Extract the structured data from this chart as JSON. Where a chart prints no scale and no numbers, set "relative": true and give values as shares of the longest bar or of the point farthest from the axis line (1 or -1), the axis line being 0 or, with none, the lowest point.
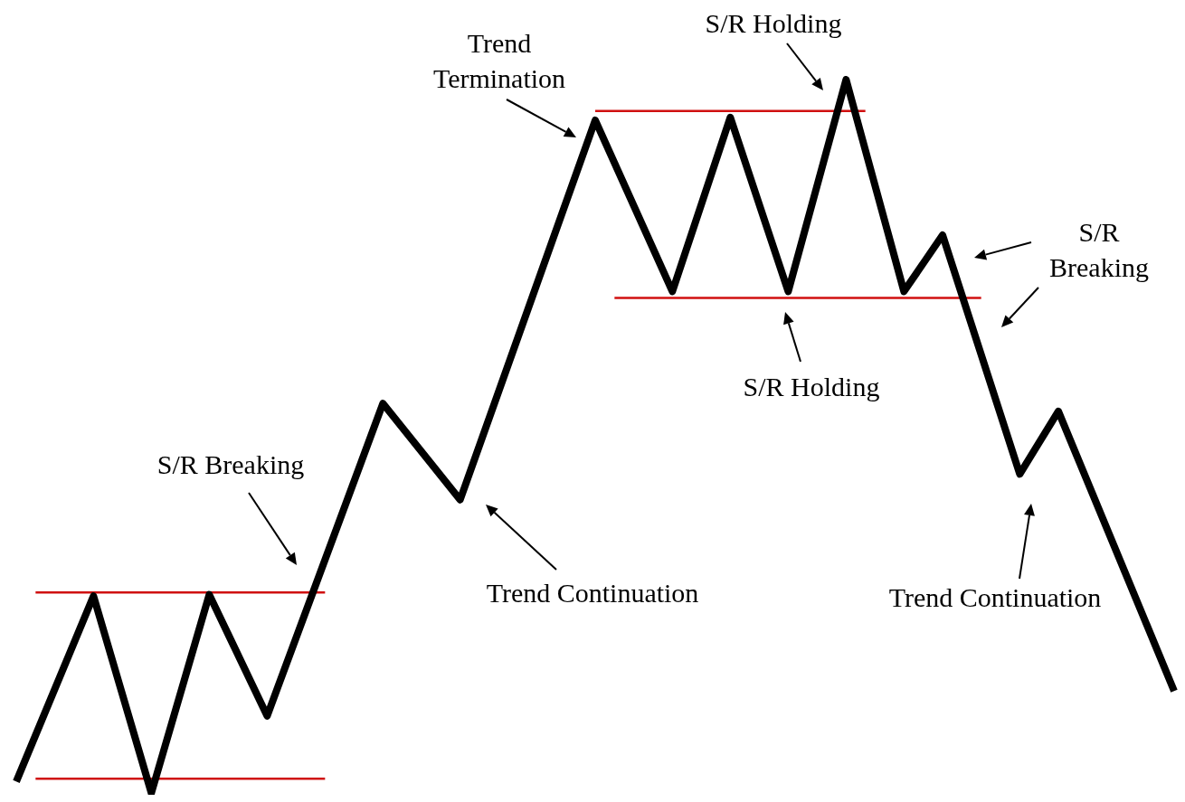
{
  "chart_data": {
    "type": "line",
    "relative": true,
    "marker": "none",
    "line_style": "solid",
    "categories": [
      null,
      null,
      null,
      null,
      null,
      null,
      null,
      null,
      null,
      null,
      null,
      null,
      null,
      null,
      null,
      null,
      null,
      null,
      null,
      null,
      null,
      null,
      null,
      null,
      null,
      null,
      null,
      null,
      null,
      null,
      null,
      null,
      null,
      null,
      null,
      null,
      null,
      null,
      null,
      null,
      null,
      null,
      null,
      null,
      null,
      null,
      null,
      null,
      null,
      null,
      null,
      null,
      null,
      null,
      null,
      null,
      null,
      null,
      null,
      null,
      null
    ],
    "series": [
      {
        "color": "#000000",
        "values": [
          0.016,
          null,
          null,
          null,
          0.276,
          null,
          null,
          0,
          null,
          null,
          0.278,
          null,
          null,
          0.108,
          null,
          null,
          null,
          null,
          null,
          0.546,
          null,
          null,
          null,
          0.411,
          null,
          null,
          null,
          null,
          null,
          null,
          0.943,
          null,
          null,
          null,
          0.703,
          null,
          null,
          0.947,
          null,
          null,
          0.703,
          null,
          null,
          1,
          null,
          null,
          0.703,
          null,
          0.782,
          null,
          null,
          null,
          0.447,
          null,
          0.535,
          null,
          null,
          null,
          null,
          null,
          0.143
        ]
      },
      {
        "color": "#d01010",
        "values": [
          null,
          0.02,
          null,
          null,
          null,
          null,
          null,
          null,
          null,
          null,
          null,
          null,
          null,
          null,
          null,
          null,
          0.02,
          null,
          null,
          null,
          null,
          null,
          null,
          null,
          null,
          null,
          null,
          null,
          null,
          null,
          null,
          null,
          null,
          null,
          null,
          null,
          null,
          null,
          null,
          null,
          null,
          null,
          null,
          null,
          null,
          null,
          null,
          null,
          null,
          null,
          null,
          null,
          null,
          null,
          null,
          null,
          null,
          null,
          null,
          null,
          null
        ]
      },
      {
        "color": "#d01010",
        "values": [
          null,
          0.281,
          null,
          null,
          null,
          null,
          null,
          null,
          null,
          null,
          null,
          null,
          null,
          null,
          null,
          null,
          0.281,
          null,
          null,
          null,
          null,
          null,
          null,
          null,
          null,
          null,
          null,
          null,
          null,
          null,
          null,
          null,
          null,
          null,
          null,
          null,
          null,
          null,
          null,
          null,
          null,
          null,
          null,
          null,
          null,
          null,
          null,
          null,
          null,
          null,
          null,
          null,
          null,
          null,
          null,
          null,
          null,
          null,
          null,
          null,
          null
        ]
      },
      {
        "color": "#d01010",
        "values": [
          null,
          null,
          null,
          null,
          null,
          null,
          null,
          null,
          null,
          null,
          null,
          null,
          null,
          null,
          null,
          null,
          null,
          null,
          null,
          null,
          null,
          null,
          null,
          null,
          null,
          null,
          null,
          null,
          null,
          null,
          0.956,
          null,
          null,
          null,
          null,
          null,
          null,
          null,
          null,
          null,
          null,
          null,
          null,
          null,
          0.956,
          null,
          null,
          null,
          null,
          null,
          null,
          null,
          null,
          null,
          null,
          null,
          null,
          null,
          null,
          null,
          null
        ]
      },
      {
        "color": "#d01010",
        "values": [
          null,
          null,
          null,
          null,
          null,
          null,
          null,
          null,
          null,
          null,
          null,
          null,
          null,
          null,
          null,
          null,
          null,
          null,
          null,
          null,
          null,
          null,
          null,
          null,
          null,
          null,
          null,
          null,
          null,
          null,
          null,
          0.694,
          null,
          null,
          null,
          null,
          null,
          null,
          null,
          null,
          null,
          null,
          null,
          null,
          null,
          null,
          null,
          null,
          null,
          null,
          0.694,
          null,
          null,
          null,
          null,
          null,
          null,
          null,
          null,
          null,
          null
        ]
      }
    ],
    "annotations": [
      "S/R Breaking",
      "Trend Continuation",
      "Trend\nTermination",
      "S/R Holding",
      "S/R Holding",
      "S/R\nBreaking",
      "Trend Continuation"
    ]
  }
}
